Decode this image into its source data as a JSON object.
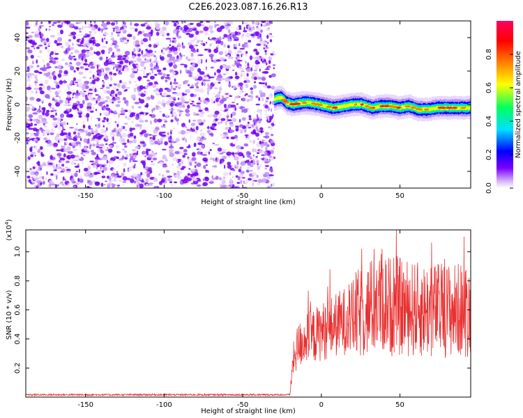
{
  "figure_title": "C2E6.2023.087.16.26.R13",
  "chart_data": [
    {
      "type": "heatmap",
      "xlabel": "Height of straight line (km)",
      "ylabel": "Frequency (Hz)",
      "xlim": [
        -188,
        95
      ],
      "ylim": [
        -50,
        50
      ],
      "x_ticks": [
        -150,
        -100,
        -50,
        0,
        50
      ],
      "y_ticks": [
        -40,
        -20,
        0,
        20,
        40
      ],
      "x_tick_labels": [
        "-150",
        "-100",
        "-50",
        "0",
        "50"
      ],
      "y_tick_labels": [
        "-40",
        "-20",
        "0",
        "20",
        "40"
      ],
      "noise_region_x": [
        -188,
        -30
      ],
      "signal_region_x": [
        -30,
        95
      ],
      "signal_ridge": [
        {
          "x": -30,
          "y": 3
        },
        {
          "x": -28,
          "y": 4
        },
        {
          "x": -25,
          "y": 4
        },
        {
          "x": -22,
          "y": 1
        },
        {
          "x": -18,
          "y": 0
        },
        {
          "x": -12,
          "y": 1
        },
        {
          "x": -7,
          "y": 1
        },
        {
          "x": -2,
          "y": 0
        },
        {
          "x": 3,
          "y": -1
        },
        {
          "x": 8,
          "y": -2
        },
        {
          "x": 14,
          "y": -1
        },
        {
          "x": 20,
          "y": 0
        },
        {
          "x": 26,
          "y": 0
        },
        {
          "x": 32,
          "y": -2
        },
        {
          "x": 38,
          "y": -1
        },
        {
          "x": 44,
          "y": -1
        },
        {
          "x": 50,
          "y": -2
        },
        {
          "x": 56,
          "y": -1
        },
        {
          "x": 62,
          "y": -3
        },
        {
          "x": 68,
          "y": -3
        },
        {
          "x": 74,
          "y": -2
        },
        {
          "x": 80,
          "y": -2
        },
        {
          "x": 86,
          "y": -2
        },
        {
          "x": 95,
          "y": -2
        }
      ],
      "colorbar": {
        "label": "Normalized spectral amplitude",
        "range": [
          0,
          1
        ],
        "ticks": [
          0.0,
          0.2,
          0.4,
          0.6,
          0.8
        ],
        "tick_labels": [
          "0.0",
          "0.2",
          "0.4",
          "0.6",
          "0.8"
        ],
        "colormap": "rainbow",
        "colors": [
          "#ffffff",
          "#d8b8f8",
          "#7a00ff",
          "#0000ff",
          "#00e0ff",
          "#00ff60",
          "#ffff00",
          "#ff8000",
          "#ff0000",
          "#ff0060"
        ]
      }
    },
    {
      "type": "line",
      "xlabel": "Height of straight line (km)",
      "ylabel": "SNR (10 * v/v)",
      "scale_label_base": "(x10",
      "scale_label_exp": "4",
      "scale_label_close": ")",
      "xlim": [
        -188,
        95
      ],
      "ylim": [
        0,
        1.15
      ],
      "x_ticks": [
        -150,
        -100,
        -50,
        0,
        50
      ],
      "y_ticks": [
        0.2,
        0.4,
        0.6,
        0.8,
        1.0
      ],
      "x_tick_labels": [
        "-150",
        "-100",
        "-50",
        "0",
        "50"
      ],
      "y_tick_labels": [
        "0.2",
        "0.4",
        "0.6",
        "0.8",
        "1.0"
      ],
      "color": "#e83030",
      "series": [
        {
          "x": [
            -188,
            -30,
            -20,
            -18,
            -15,
            -10,
            -5,
            0,
            10,
            20,
            30,
            35,
            40,
            45,
            50,
            60,
            70,
            80,
            95
          ],
          "values": [
            0.01,
            0.01,
            0.01,
            0.25,
            0.35,
            0.4,
            0.42,
            0.45,
            0.5,
            0.55,
            0.6,
            0.65,
            0.65,
            0.62,
            0.62,
            0.6,
            0.6,
            0.6,
            0.6
          ]
        }
      ]
    }
  ]
}
